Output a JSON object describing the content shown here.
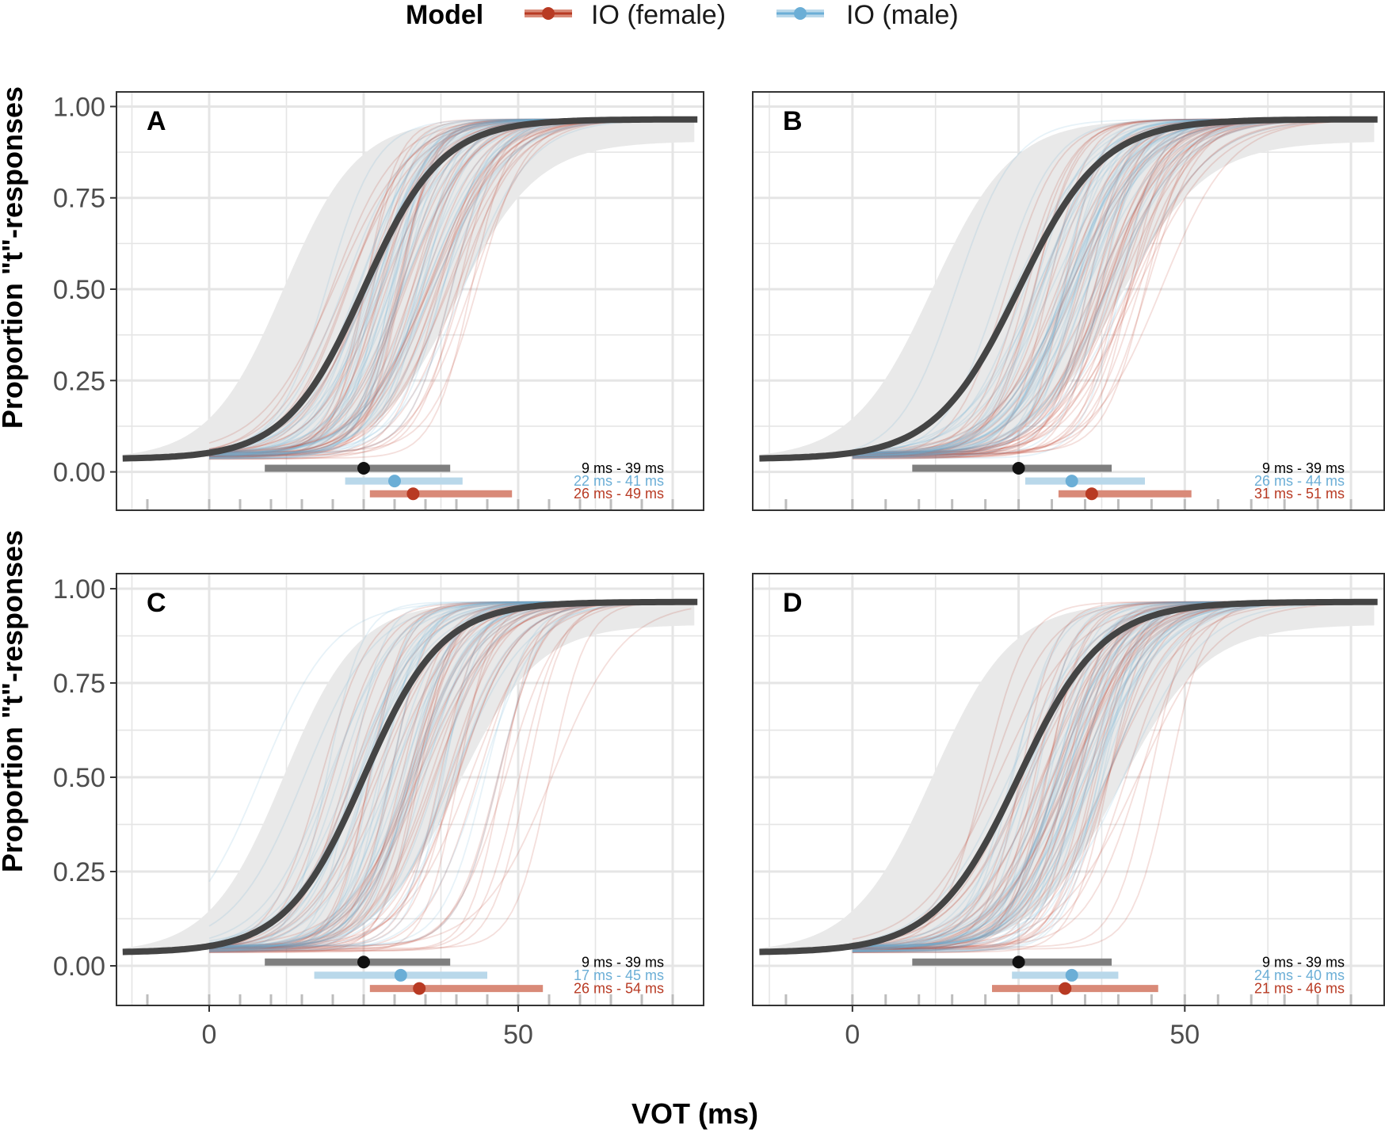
{
  "legend": {
    "title": "Model",
    "entries": [
      {
        "label": "IO (female)",
        "color": "#B83A23",
        "band_color": "#D98A78"
      },
      {
        "label": "IO (male)",
        "color": "#6BAED6",
        "band_color": "#B9D8EA"
      }
    ],
    "position": "top"
  },
  "axes": {
    "ylabel": "Proportion \"t\"-responses",
    "xlabel": "VOT (ms)",
    "y_ticks": [
      "0.00",
      "0.25",
      "0.50",
      "0.75",
      "1.00"
    ],
    "x_ticks": [
      "0",
      "50"
    ]
  },
  "colors": {
    "human_curve": "#444444",
    "human_band": "#E9E9E9",
    "human_point": "#111111",
    "human_interval": "#7F7F7F",
    "grid": "#E5E5E5",
    "panel_border": "#333333"
  },
  "chart_data": {
    "type": "line",
    "x_domain": [
      -15,
      80
    ],
    "y_domain": [
      -0.105,
      1.04
    ],
    "grid": true,
    "human_curve": {
      "lapse_low": 0.035,
      "lapse_high": 0.035,
      "mean": 25,
      "scale": 6.3,
      "band_from_x": -14
    },
    "panels": [
      {
        "label": "A",
        "intervals": [
          {
            "series": "human",
            "text": "9 ms - 39 ms",
            "low": 9,
            "high": 39,
            "point": 25,
            "y": 0.01
          },
          {
            "series": "IO (male)",
            "text": "22 ms - 41 ms",
            "low": 22,
            "high": 41,
            "point": 30,
            "y": -0.025
          },
          {
            "series": "IO (female)",
            "text": "26 ms - 49 ms",
            "low": 26,
            "high": 49,
            "point": 33,
            "y": -0.06
          }
        ]
      },
      {
        "label": "B",
        "intervals": [
          {
            "series": "human",
            "text": "9 ms - 39 ms",
            "low": 9,
            "high": 39,
            "point": 25,
            "y": 0.01
          },
          {
            "series": "IO (male)",
            "text": "26 ms - 44 ms",
            "low": 26,
            "high": 44,
            "point": 33,
            "y": -0.025
          },
          {
            "series": "IO (female)",
            "text": "31 ms - 51 ms",
            "low": 31,
            "high": 51,
            "point": 36,
            "y": -0.06
          }
        ]
      },
      {
        "label": "C",
        "intervals": [
          {
            "series": "human",
            "text": "9 ms - 39 ms",
            "low": 9,
            "high": 39,
            "point": 25,
            "y": 0.01
          },
          {
            "series": "IO (male)",
            "text": "17 ms - 45 ms",
            "low": 17,
            "high": 45,
            "point": 31,
            "y": -0.025
          },
          {
            "series": "IO (female)",
            "text": "26 ms - 54 ms",
            "low": 26,
            "high": 54,
            "point": 34,
            "y": -0.06
          }
        ]
      },
      {
        "label": "D",
        "intervals": [
          {
            "series": "human",
            "text": "9 ms - 39 ms",
            "low": 9,
            "high": 39,
            "point": 25,
            "y": 0.01
          },
          {
            "series": "IO (male)",
            "text": "24 ms - 40 ms",
            "low": 24,
            "high": 40,
            "point": 33,
            "y": -0.025
          },
          {
            "series": "IO (female)",
            "text": "21 ms - 46 ms",
            "low": 21,
            "high": 46,
            "point": 32,
            "y": -0.06
          }
        ]
      }
    ],
    "rug_ticks_x": [
      -10,
      0,
      5,
      10,
      15,
      20,
      25,
      30,
      35,
      40,
      45,
      50,
      55,
      60,
      65,
      70,
      75
    ]
  }
}
